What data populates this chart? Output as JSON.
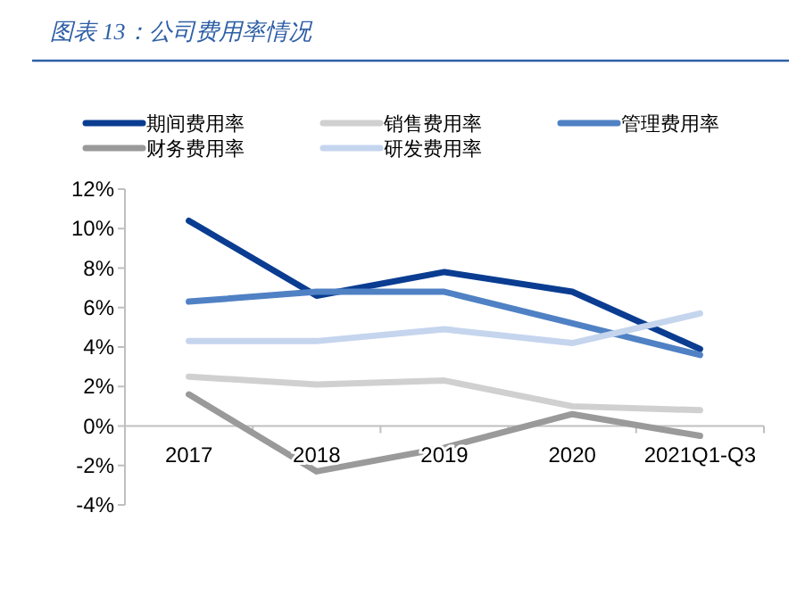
{
  "chart_data": {
    "type": "line",
    "title": "图表 13：公司费用率情况",
    "categories": [
      "2017",
      "2018",
      "2019",
      "2020",
      "2021Q1-Q3"
    ],
    "series": [
      {
        "name": "期间费用率",
        "color": "#0a3d91",
        "values": [
          10.4,
          6.6,
          7.8,
          6.8,
          3.9
        ]
      },
      {
        "name": "销售费用率",
        "color": "#d0d0d0",
        "values": [
          2.5,
          2.1,
          2.3,
          1.0,
          0.8
        ]
      },
      {
        "name": "管理费用率",
        "color": "#4f81c4",
        "values": [
          6.3,
          6.8,
          6.8,
          5.2,
          3.6
        ]
      },
      {
        "name": "财务费用率",
        "color": "#9a9a9a",
        "values": [
          1.6,
          -2.3,
          -1.1,
          0.6,
          -0.5
        ]
      },
      {
        "name": "研发费用率",
        "color": "#c5d5ee",
        "values": [
          4.3,
          4.3,
          4.9,
          4.2,
          5.7
        ]
      }
    ],
    "ylim": [
      -4,
      12
    ],
    "yticks": [
      {
        "value": -4,
        "label": "-4%"
      },
      {
        "value": -2,
        "label": "-2%"
      },
      {
        "value": 0,
        "label": "0%"
      },
      {
        "value": 2,
        "label": "2%"
      },
      {
        "value": 4,
        "label": "4%"
      },
      {
        "value": 6,
        "label": "6%"
      },
      {
        "value": 8,
        "label": "8%"
      },
      {
        "value": 10,
        "label": "10%"
      },
      {
        "value": 12,
        "label": "12%"
      }
    ],
    "grid": false,
    "legend": "top",
    "marker": "none",
    "line_style": "solid"
  }
}
